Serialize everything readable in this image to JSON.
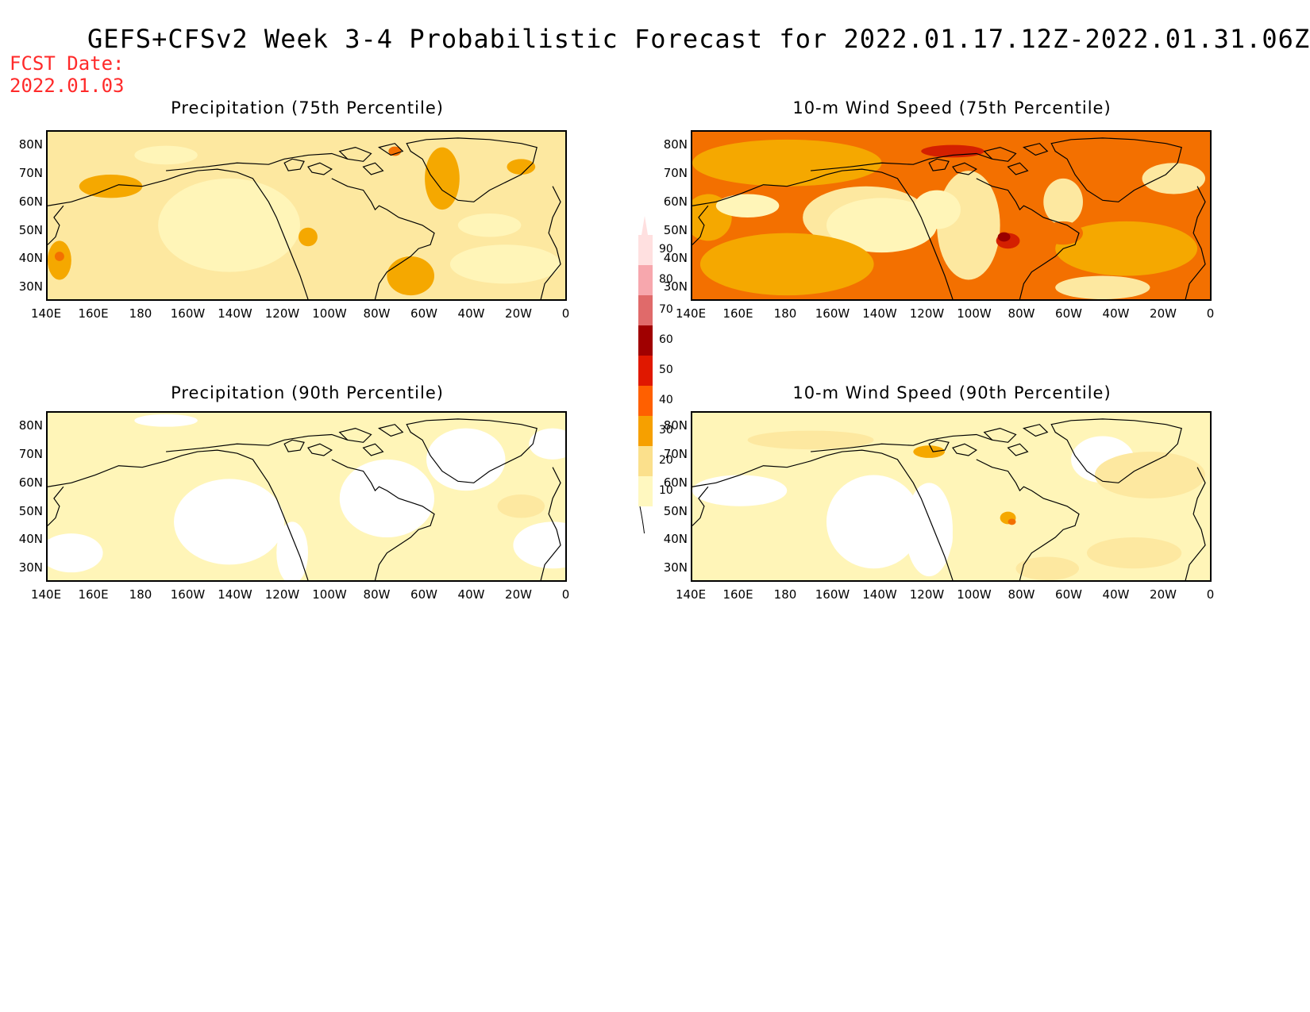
{
  "title": "GEFS+CFSv2 Week 3-4 Probabilistic Forecast for 2022.01.17.12Z-2022.01.31.06Z",
  "fcst_label": "FCST Date:",
  "fcst_date": "2022.01.03",
  "panels": [
    {
      "title": "Precipitation (75th Percentile)"
    },
    {
      "title": "10-m Wind Speed (75th Percentile)"
    },
    {
      "title": "Precipitation (90th Percentile)"
    },
    {
      "title": "10-m Wind Speed (90th Percentile)"
    }
  ],
  "lat_labels": [
    "80N",
    "70N",
    "60N",
    "50N",
    "40N",
    "30N"
  ],
  "lon_labels": [
    "140E",
    "160E",
    "180",
    "160W",
    "140W",
    "120W",
    "100W",
    "80W",
    "60W",
    "40W",
    "20W",
    "0"
  ],
  "colorbar": {
    "labels": [
      "90",
      "80",
      "70",
      "60",
      "50",
      "40",
      "30",
      "20",
      "10"
    ],
    "colors": [
      "#ffe0e0",
      "#f7a7ad",
      "#e06a6a",
      "#a00000",
      "#e01800",
      "#ff6000",
      "#f6a000",
      "#fbe08c",
      "#fff8c0"
    ]
  },
  "colors": {
    "white": "#ffffff",
    "pale": "#fff5b8",
    "light": "#fde8a0",
    "orange": "#f5a800",
    "deep_orange": "#f37000",
    "red": "#d42000",
    "dark_red": "#9a0000",
    "fcst_red": "#ff2a2a"
  }
}
